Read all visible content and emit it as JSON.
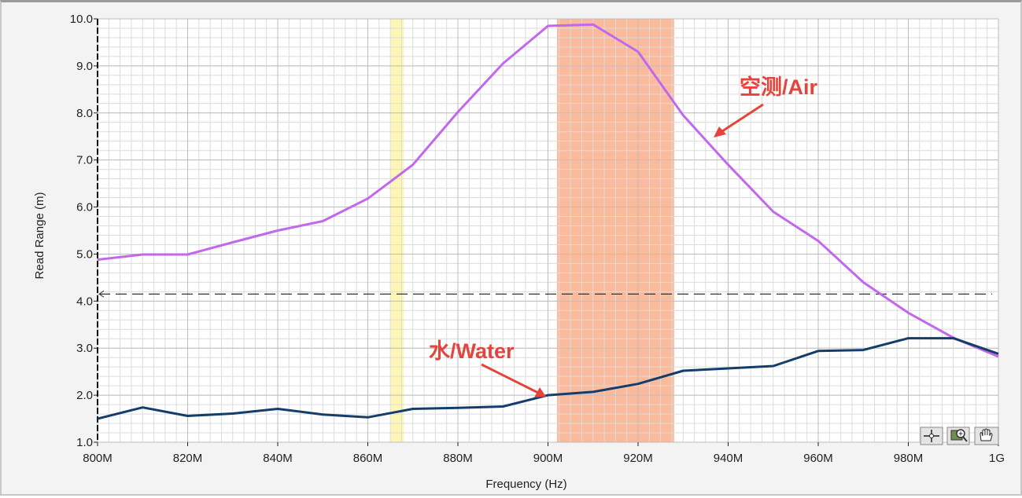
{
  "chart_data": {
    "type": "line",
    "xlabel": "Frequency (Hz)",
    "ylabel": "Read Range (m)",
    "xlim": [
      800,
      1000
    ],
    "ylim": [
      1.0,
      10.0
    ],
    "x_ticks": [
      "800M",
      "820M",
      "840M",
      "860M",
      "880M",
      "900M",
      "920M",
      "940M",
      "960M",
      "980M",
      "1G"
    ],
    "y_ticks": [
      "1.0",
      "2.0",
      "3.0",
      "4.0",
      "5.0",
      "6.0",
      "7.0",
      "8.0",
      "9.0",
      "10.0"
    ],
    "grid": true,
    "reference_line": {
      "y": 4.15,
      "style": "dashed"
    },
    "bands": [
      {
        "x": [
          865,
          868
        ],
        "color": "#fdf6b6"
      },
      {
        "x": [
          902,
          928
        ],
        "color": "#f9bb9c"
      }
    ],
    "series": [
      {
        "name": "空测/Air",
        "color": "#c168ec",
        "x": [
          800,
          810,
          820,
          830,
          840,
          850,
          860,
          870,
          880,
          890,
          900,
          910,
          920,
          930,
          940,
          950,
          960,
          970,
          980,
          990,
          1000
        ],
        "y": [
          4.88,
          4.99,
          4.99,
          5.25,
          5.5,
          5.7,
          6.18,
          6.9,
          8.02,
          9.05,
          9.85,
          9.88,
          9.3,
          7.95,
          6.9,
          5.9,
          5.28,
          4.4,
          3.75,
          3.22,
          2.82
        ]
      },
      {
        "name": "水/Water",
        "color": "#153d6c",
        "x": [
          800,
          810,
          820,
          830,
          840,
          850,
          860,
          870,
          880,
          890,
          900,
          910,
          920,
          930,
          940,
          950,
          960,
          970,
          980,
          990,
          1000
        ],
        "y": [
          1.5,
          1.74,
          1.56,
          1.61,
          1.71,
          1.59,
          1.53,
          1.71,
          1.73,
          1.76,
          2.0,
          2.07,
          2.24,
          2.52,
          2.57,
          2.62,
          2.94,
          2.96,
          3.21,
          3.21,
          2.88
        ]
      }
    ],
    "annotations": [
      {
        "text": "空测/Air",
        "target_series": "空测/Air"
      },
      {
        "text": "水/Water",
        "target_series": "水/Water"
      }
    ]
  },
  "toolbar": {
    "buttons": [
      {
        "icon": "crosshair-cursor-icon"
      },
      {
        "icon": "zoom-icon"
      },
      {
        "icon": "pan-hand-icon"
      }
    ]
  }
}
